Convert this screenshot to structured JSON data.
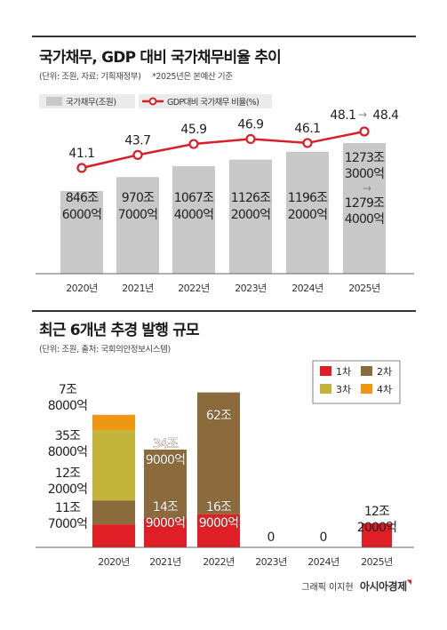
{
  "chart_data": [
    {
      "type": "bar+line",
      "title": "국가채무, GDP 대비 국가채무비율 추이",
      "subtitle": "(단위: 조원, 자료: 기획재정부)",
      "note": "*2025년은 본예산 기준",
      "legend": {
        "bar": "국가채무(조원)",
        "line": "GDP대비 국가채무 비율(%)"
      },
      "categories": [
        "2020년",
        "2021년",
        "2022년",
        "2023년",
        "2024년",
        "2025년"
      ],
      "debt_values": [
        846.6,
        970.7,
        1067.4,
        1126.2,
        1196.2,
        1273.3
      ],
      "debt_labels": [
        [
          "846조",
          "6000억"
        ],
        [
          "970조",
          "7000억"
        ],
        [
          "1067조",
          "4000억"
        ],
        [
          "1126조",
          "2000억"
        ],
        [
          "1196조",
          "2000억"
        ],
        [
          "1273조",
          "3000억",
          "→",
          "1279조",
          "4000억"
        ]
      ],
      "ratio_values": [
        41.1,
        43.7,
        45.9,
        46.9,
        46.1,
        48.4
      ],
      "ratio_labels": [
        "41.1",
        "43.7",
        "45.9",
        "46.9",
        "46.1",
        "48.1",
        "48.4"
      ],
      "colors": {
        "bar": "#c8c8c8",
        "line": "#d81e28"
      }
    },
    {
      "type": "stacked-bar",
      "title": "최근 6개년 추경 발행 규모",
      "subtitle": "(단위: 조원, 출처: 국회의안정보시스템)",
      "categories": [
        "2020년",
        "2021년",
        "2022년",
        "2023년",
        "2024년",
        "2025년"
      ],
      "series": [
        {
          "name": "1차",
          "color": "#e01e26",
          "values": [
            11.7,
            14.9,
            16.9,
            0,
            0,
            12.2
          ]
        },
        {
          "name": "2차",
          "color": "#8b6a3c",
          "values": [
            12.2,
            34.9,
            62,
            0,
            0,
            0
          ]
        },
        {
          "name": "3차",
          "color": "#c2b43a",
          "values": [
            35.8,
            0,
            0,
            0,
            0,
            0
          ]
        },
        {
          "name": "4차",
          "color": "#ef9712",
          "values": [
            7.8,
            0,
            0,
            0,
            0,
            0
          ]
        }
      ],
      "side_labels": [
        [
          "11조",
          "7000억"
        ],
        [
          "12조",
          "2000억"
        ],
        [
          "35조",
          "8000억"
        ],
        [
          "7조",
          "8000억"
        ]
      ],
      "in_bar_labels": {
        "2021_1": [
          "14조",
          "9000억"
        ],
        "2021_2": [
          "34조",
          "9000억"
        ],
        "2022_1": [
          "16조",
          "9000억"
        ],
        "2022_2": "62조",
        "2025_1": [
          "12조",
          "2000억"
        ]
      },
      "zero_labels": {
        "2023": "0",
        "2024": "0"
      }
    }
  ],
  "footer": {
    "credit": "그래픽 이지현",
    "brand": "아시아경제"
  }
}
